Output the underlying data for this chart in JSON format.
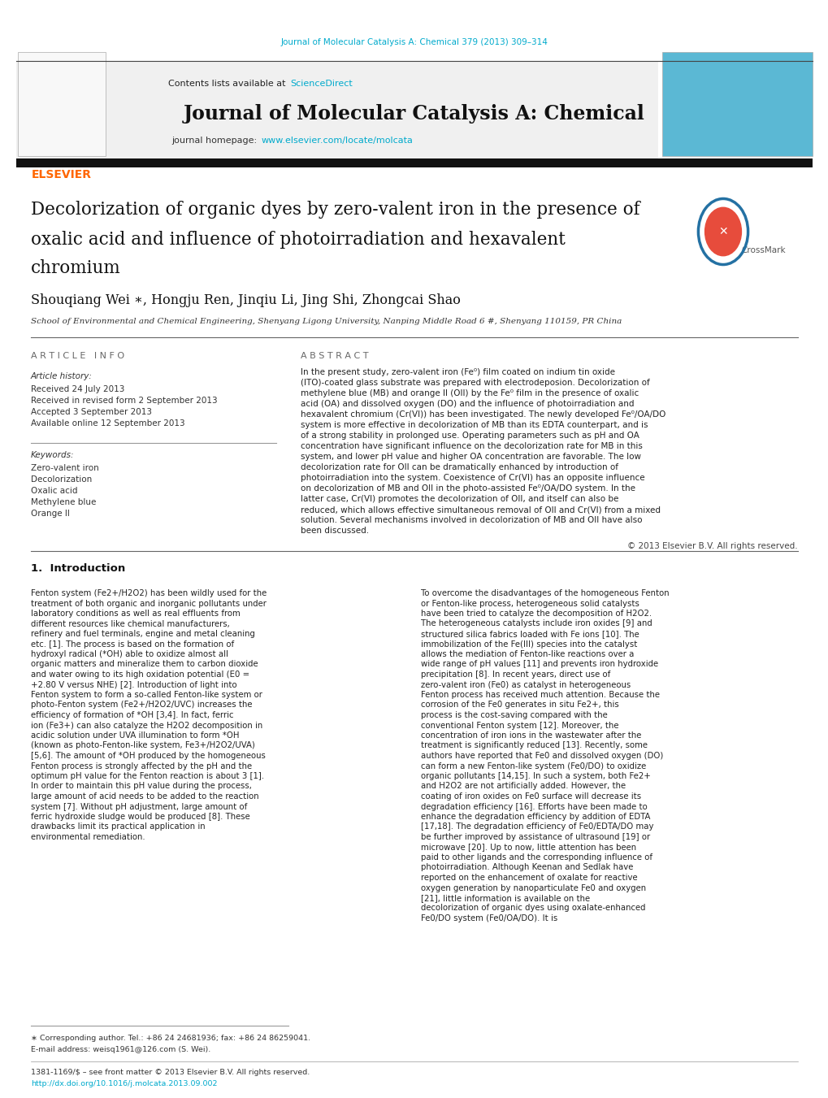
{
  "page_width": 10.2,
  "page_height": 13.51,
  "bg_color": "#ffffff",
  "top_citation": "Journal of Molecular Catalysis A: Chemical 379 (2013) 309–314",
  "top_citation_color": "#00aacc",
  "journal_name": "Journal of Molecular Catalysis A: Chemical",
  "contents_text": "Contents lists available at ",
  "sciencedirect_text": "ScienceDirect",
  "sciencedirect_color": "#00aacc",
  "homepage_text": "journal homepage: ",
  "homepage_url": "www.elsevier.com/locate/molcata",
  "homepage_color": "#00aacc",
  "header_bg": "#f0f0f0",
  "header_bar_color": "#1a1a1a",
  "elsevier_color": "#ff6600",
  "article_title_line1": "Decolorization of organic dyes by zero-valent iron in the presence of",
  "article_title_line2": "oxalic acid and influence of photoirradiation and hexavalent",
  "article_title_line3": "chromium",
  "authors": "Shouqiang Wei ∗, Hongju Ren, Jinqiu Li, Jing Shi, Zhongcai Shao",
  "affiliation": "School of Environmental and Chemical Engineering, Shenyang Ligong University, Nanping Middle Road 6 #, Shenyang 110159, PR China",
  "article_info_header": "A R T I C L E   I N F O",
  "abstract_header": "A B S T R A C T",
  "article_history_header": "Article history:",
  "received1": "Received 24 July 2013",
  "received2": "Received in revised form 2 September 2013",
  "accepted": "Accepted 3 September 2013",
  "available": "Available online 12 September 2013",
  "keywords_header": "Keywords:",
  "keywords": [
    "Zero-valent iron",
    "Decolorization",
    "Oxalic acid",
    "Methylene blue",
    "Orange II"
  ],
  "abstract_text": "In the present study, zero-valent iron (Fe⁰) film coated on indium tin oxide (ITO)-coated glass substrate was prepared with electrodeposion. Decolorization of methylene blue (MB) and orange II (OII) by the Fe⁰ film in the presence of oxalic acid (OA) and dissolved oxygen (DO) and the influence of photoirradiation and hexavalent chromium (Cr(VI)) has been investigated. The newly developed Fe⁰/OA/DO system is more effective in decolorization of MB than its EDTA counterpart, and is of a strong stability in prolonged use. Operating parameters such as pH and OA concentration have significant influence on the decolorization rate for MB in this system, and lower pH value and higher OA concentration are favorable. The low decolorization rate for OII can be dramatically enhanced by introduction of photoirradiation into the system. Coexistence of Cr(VI) has an opposite influence on decolorization of MB and OII in the photo-assisted Fe⁰/OA/DO system. In the latter case, Cr(VI) promotes the decolorization of OII, and itself can also be reduced, which allows effective simultaneous removal of OII and Cr(VI) from a mixed solution. Several mechanisms involved in decolorization of MB and OII have also been discussed.",
  "copyright": "© 2013 Elsevier B.V. All rights reserved.",
  "section1_title": "1.  Introduction",
  "intro_left": "Fenton system (Fe2+/H2O2) has been wildly used for the treatment of both organic and inorganic pollutants under laboratory conditions as well as real effluents from different resources like chemical manufacturers, refinery and fuel terminals, engine and metal cleaning etc. [1]. The process is based on the formation of hydroxyl radical (*OH) able to oxidize almost all organic matters and mineralize them to carbon dioxide and water owing to its high oxidation potential (E0 = +2.80 V versus NHE) [2]. Introduction of light into Fenton system to form a so-called Fenton-like system or photo-Fenton system (Fe2+/H2O2/UVC) increases the efficiency of formation of *OH [3,4]. In fact, ferric ion (Fe3+) can also catalyze the H2O2 decomposition in acidic solution under UVA illumination to form *OH (known as photo-Fenton-like system, Fe3+/H2O2/UVA) [5,6]. The amount of *OH produced by the homogeneous Fenton process is strongly affected by the pH and the optimum pH value for the Fenton reaction is about 3 [1]. In order to maintain this pH value during the process, large amount of acid needs to be added to the reaction system [7]. Without pH adjustment, large amount of ferric hydroxide sludge would be produced [8]. These drawbacks limit its practical application in environmental remediation.",
  "intro_right": "To overcome the disadvantages of the homogeneous Fenton or Fenton-like process, heterogeneous solid catalysts have been tried to catalyze the decomposition of H2O2. The heterogeneous catalysts include iron oxides [9] and structured silica fabrics loaded with Fe ions [10]. The immobilization of the Fe(III) species into the catalyst allows the mediation of Fenton-like reactions over a wide range of pH values [11] and prevents iron hydroxide precipitation [8]. In recent years, direct use of zero-valent iron (Fe0) as catalyst in heterogeneous Fenton process has received much attention. Because the corrosion of the Fe0 generates in situ Fe2+, this process is the cost-saving compared with the conventional Fenton system [12]. Moreover, the concentration of iron ions in the wastewater after the treatment is significantly reduced [13]. Recently, some authors have reported that Fe0 and dissolved oxygen (DO) can form a new Fenton-like system (Fe0/DO) to oxidize organic pollutants [14,15]. In such a system, both Fe2+ and H2O2 are not artificially added. However, the coating of iron oxides on Fe0 surface will decrease its degradation efficiency [16]. Efforts have been made to enhance the degradation efficiency by addition of EDTA [17,18]. The degradation efficiency of Fe0/EDTA/DO may be further improved by assistance of ultrasound [19] or microwave [20]. Up to now, little attention has been paid to other ligands and the corresponding influence of photoirradiation. Although Keenan and Sedlak have reported on the enhancement of oxalate for reactive oxygen generation by nanoparticulate Fe0 and oxygen [21], little information is available on the decolorization of organic dyes using oxalate-enhanced Fe0/DO system (Fe0/OA/DO). It is",
  "footnote_line1": "∗ Corresponding author. Tel.: +86 24 24681936; fax: +86 24 86259041.",
  "footnote_line2": "E-mail address: weisq1961@126.com (S. Wei).",
  "footnote_line3": "1381-1169/$ – see front matter © 2013 Elsevier B.V. All rights reserved.",
  "footnote_url": "http://dx.doi.org/10.1016/j.molcata.2013.09.002"
}
